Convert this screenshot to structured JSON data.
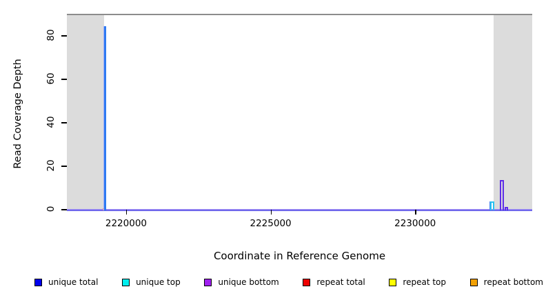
{
  "chart_data": {
    "type": "line",
    "title": "",
    "xlabel": "Coordinate in Reference Genome",
    "ylabel": "Read Coverage Depth",
    "xlim": [
      2217950,
      2234050
    ],
    "ylim": [
      0,
      90
    ],
    "xticks": [
      2220000,
      2225000,
      2230000
    ],
    "yticks": [
      0,
      20,
      40,
      60,
      80
    ],
    "grid": false,
    "plot_background": "#ffffff",
    "frame_color": "#8c8c8c",
    "shaded_regions": [
      {
        "name": "left-flank",
        "x0": 2217950,
        "x1": 2219230,
        "color": "#dcdcdc"
      },
      {
        "name": "right-flank",
        "x0": 2232720,
        "x1": 2234050,
        "color": "#dcdcdc"
      }
    ],
    "baseline_value": 0,
    "spikes": [
      {
        "series": "repeat total",
        "x": 2219245,
        "height": 1,
        "width": 5,
        "color": "#f08a8a",
        "edge": "",
        "hollow": false
      },
      {
        "series": "unique total",
        "x": 2219265,
        "height": 85,
        "width": 3,
        "color": "#2e7af2",
        "edge": "#a7b2f4",
        "hollow": false
      },
      {
        "series": "unique top",
        "x": 2232660,
        "height": 4,
        "width": 6,
        "color": "#29c3f0",
        "edge": "#4a86f0",
        "hollow": true
      },
      {
        "series": "unique bottom",
        "x": 2232990,
        "height": 14,
        "width": 6,
        "color": "#5e2de8",
        "edge": "",
        "hollow": true
      },
      {
        "series": "unique bottom",
        "x": 2233150,
        "height": 1.5,
        "width": 5,
        "color": "#5e2de8",
        "edge": "",
        "hollow": true
      }
    ],
    "legend": {
      "position": "bottom",
      "items": [
        {
          "label": "unique total",
          "color": "#0000ee"
        },
        {
          "label": "unique top",
          "color": "#00eeee"
        },
        {
          "label": "unique bottom",
          "color": "#a020f0"
        },
        {
          "label": "repeat total",
          "color": "#ee0000"
        },
        {
          "label": "repeat top",
          "color": "#ffff00"
        },
        {
          "label": "repeat bottom",
          "color": "#f2a105"
        }
      ]
    }
  }
}
